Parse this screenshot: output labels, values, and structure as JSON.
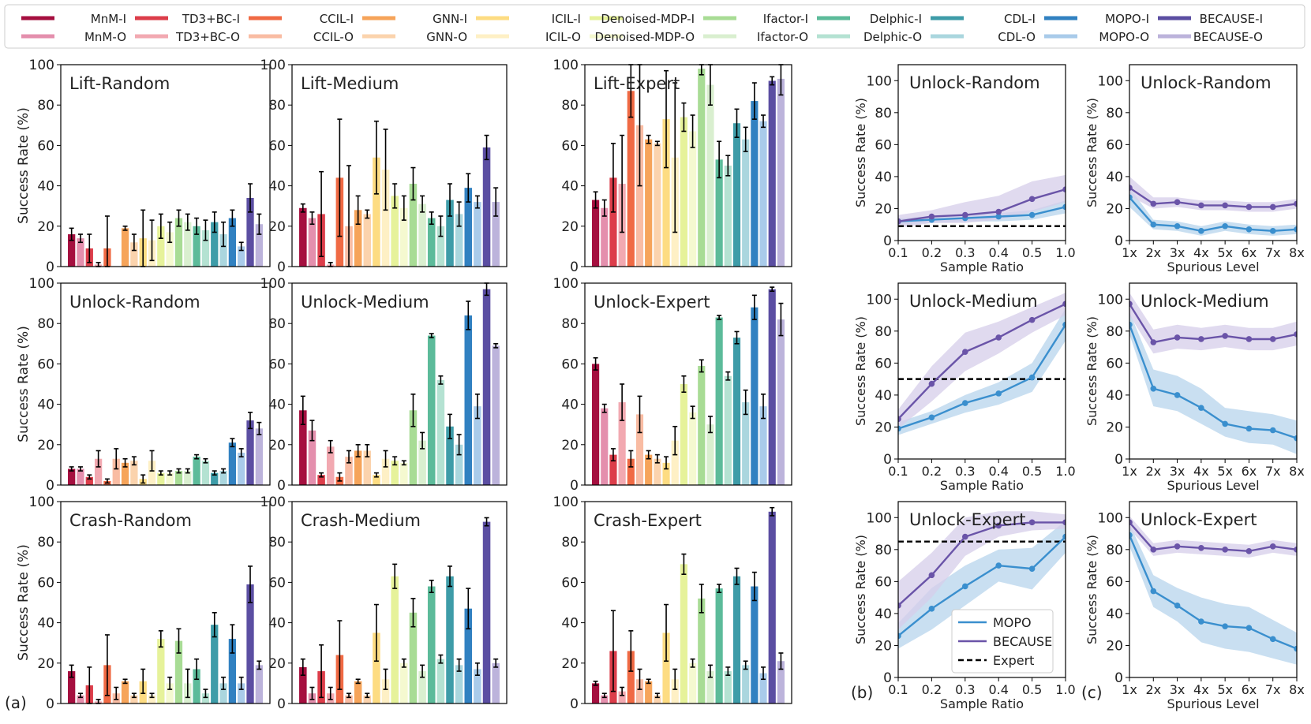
{
  "figure": {
    "legend": [
      {
        "name": "MnM-I",
        "color": "#a50f3f"
      },
      {
        "name": "MnM-O",
        "color": "#e48fad"
      },
      {
        "name": "TD3+BC-I",
        "color": "#dc3d4a"
      },
      {
        "name": "TD3+BC-O",
        "color": "#f2a9b1"
      },
      {
        "name": "CCIL-I",
        "color": "#f06a44"
      },
      {
        "name": "CCIL-O",
        "color": "#f9bca3"
      },
      {
        "name": "GNN-I",
        "color": "#f6a45a"
      },
      {
        "name": "GNN-O",
        "color": "#fbd3ad"
      },
      {
        "name": "ICIL-I",
        "color": "#fddc82"
      },
      {
        "name": "ICIL-O",
        "color": "#fef0c5"
      },
      {
        "name": "Denoised-MDP-I",
        "color": "#e6f29a"
      },
      {
        "name": "Denoised-MDP-O",
        "color": "#f5f9d0"
      },
      {
        "name": "Ifactor-I",
        "color": "#a8dc95"
      },
      {
        "name": "Ifactor-O",
        "color": "#d9efcf"
      },
      {
        "name": "Delphic-I",
        "color": "#5cbb9a"
      },
      {
        "name": "Delphic-O",
        "color": "#b4e2d2"
      },
      {
        "name": "CDL-I",
        "color": "#3e9ca8"
      },
      {
        "name": "CDL-O",
        "color": "#aad6de"
      },
      {
        "name": "MOPO-I",
        "color": "#3181c1"
      },
      {
        "name": "MOPO-O",
        "color": "#a9cbea"
      },
      {
        "name": "BECAUSE-I",
        "color": "#5b4ea2"
      },
      {
        "name": "BECAUSE-O",
        "color": "#bcb3db"
      }
    ],
    "panel_labels": [
      "(a)",
      "(b)",
      "(c)"
    ]
  },
  "chart_data": [
    {
      "type": "bar",
      "title": "Lift-Random",
      "ylabel": "Success Rate (%)",
      "ylim": [
        0,
        100
      ],
      "yticks": [
        0,
        20,
        40,
        60,
        80,
        100
      ],
      "values": [
        16,
        14,
        9,
        1,
        9,
        0,
        19,
        12,
        14,
        13,
        20,
        17,
        24,
        22,
        20,
        18,
        22,
        16,
        24,
        10,
        34,
        21
      ],
      "errors": [
        3,
        2,
        7,
        1,
        16,
        0,
        1,
        4,
        14,
        10,
        6,
        5,
        4,
        4,
        4,
        5,
        5,
        6,
        4,
        2,
        7,
        5
      ]
    },
    {
      "type": "bar",
      "title": "Lift-Medium",
      "ylabel": "",
      "ylim": [
        0,
        100
      ],
      "yticks": [
        0,
        20,
        40,
        60,
        80,
        100
      ],
      "values": [
        29,
        24,
        26,
        1,
        44,
        20,
        28,
        26,
        54,
        48,
        35,
        29,
        41,
        31,
        24,
        20,
        33,
        26,
        39,
        32,
        59,
        32
      ],
      "errors": [
        2,
        3,
        21,
        1,
        29,
        30,
        7,
        2,
        18,
        20,
        6,
        6,
        8,
        4,
        3,
        5,
        8,
        6,
        7,
        3,
        6,
        7
      ]
    },
    {
      "type": "bar",
      "title": "Lift-Expert",
      "ylabel": "",
      "ylim": [
        0,
        100
      ],
      "yticks": [
        0,
        20,
        40,
        60,
        80,
        100
      ],
      "values": [
        33,
        29,
        44,
        41,
        87,
        70,
        63,
        61,
        73,
        54,
        74,
        67,
        98,
        90,
        53,
        50,
        71,
        63,
        82,
        72,
        92,
        93
      ],
      "errors": [
        4,
        4,
        17,
        24,
        13,
        30,
        2,
        1,
        24,
        37,
        7,
        8,
        3,
        10,
        9,
        5,
        7,
        6,
        9,
        3,
        2,
        8
      ]
    },
    {
      "type": "bar",
      "title": "Unlock-Random",
      "ylabel": "Success Rate (%)",
      "ylim": [
        0,
        100
      ],
      "yticks": [
        0,
        20,
        40,
        60,
        80,
        100
      ],
      "values": [
        8,
        8,
        4,
        13,
        2,
        13,
        11,
        12,
        3,
        12,
        6,
        6,
        7,
        7,
        14,
        12,
        6,
        7,
        21,
        16,
        32,
        28
      ],
      "errors": [
        1,
        1,
        1,
        4,
        1,
        5,
        2,
        2,
        2,
        5,
        1,
        1,
        1,
        1,
        1,
        1,
        1,
        1,
        2,
        2,
        4,
        3
      ]
    },
    {
      "type": "bar",
      "title": "Unlock-Medium",
      "ylabel": "",
      "ylim": [
        0,
        100
      ],
      "yticks": [
        0,
        20,
        40,
        60,
        80,
        100
      ],
      "values": [
        37,
        27,
        5,
        19,
        4,
        14,
        17,
        17,
        5,
        13,
        12,
        11,
        37,
        22,
        74,
        52,
        29,
        20,
        84,
        39,
        97,
        69
      ],
      "errors": [
        7,
        5,
        1,
        3,
        2,
        3,
        3,
        3,
        1,
        4,
        2,
        1,
        8,
        4,
        1,
        2,
        6,
        5,
        7,
        6,
        3,
        1
      ]
    },
    {
      "type": "bar",
      "title": "Unlock-Expert",
      "ylabel": "",
      "ylim": [
        0,
        100
      ],
      "yticks": [
        0,
        20,
        40,
        60,
        80,
        100
      ],
      "values": [
        60,
        38,
        15,
        41,
        13,
        35,
        15,
        13,
        11,
        22,
        50,
        36,
        59,
        30,
        83,
        54,
        73,
        41,
        88,
        39,
        97,
        82
      ],
      "errors": [
        3,
        2,
        3,
        9,
        4,
        9,
        2,
        2,
        3,
        7,
        4,
        3,
        3,
        4,
        1,
        2,
        3,
        6,
        6,
        6,
        1,
        8
      ]
    },
    {
      "type": "bar",
      "title": "Crash-Random",
      "ylabel": "Success Rate (%)",
      "ylim": [
        0,
        100
      ],
      "yticks": [
        0,
        20,
        40,
        60,
        80,
        100
      ],
      "values": [
        16,
        4,
        9,
        1,
        19,
        5,
        11,
        4,
        11,
        4,
        32,
        10,
        31,
        10,
        17,
        5,
        39,
        10,
        32,
        10,
        59,
        19
      ],
      "errors": [
        3,
        1,
        9,
        1,
        15,
        3,
        1,
        1,
        6,
        1,
        4,
        3,
        6,
        7,
        5,
        2,
        6,
        3,
        7,
        3,
        9,
        2
      ]
    },
    {
      "type": "bar",
      "title": "Crash-Medium",
      "ylabel": "",
      "ylim": [
        0,
        100
      ],
      "yticks": [
        0,
        20,
        40,
        60,
        80,
        100
      ],
      "values": [
        18,
        5,
        16,
        5,
        24,
        4,
        11,
        4,
        35,
        12,
        63,
        20,
        45,
        16,
        58,
        22,
        63,
        19,
        47,
        17,
        90,
        20
      ],
      "errors": [
        4,
        3,
        13,
        3,
        17,
        1,
        1,
        1,
        14,
        5,
        6,
        2,
        7,
        3,
        3,
        2,
        5,
        3,
        10,
        3,
        2,
        2
      ]
    },
    {
      "type": "bar",
      "title": "Crash-Expert",
      "ylabel": "",
      "ylim": [
        0,
        100
      ],
      "yticks": [
        0,
        20,
        40,
        60,
        80,
        100
      ],
      "values": [
        10,
        4,
        26,
        6,
        26,
        12,
        11,
        4,
        35,
        12,
        69,
        20,
        52,
        16,
        57,
        16,
        63,
        19,
        58,
        15,
        95,
        21
      ],
      "errors": [
        1,
        1,
        20,
        2,
        10,
        5,
        1,
        1,
        14,
        5,
        5,
        2,
        7,
        3,
        2,
        2,
        4,
        2,
        7,
        3,
        2,
        4
      ]
    },
    {
      "type": "line",
      "title": "Unlock-Random",
      "xlabel": "Sample Ratio",
      "ylabel": "Success Rate (%)",
      "ylim": [
        0,
        110
      ],
      "yticks": [
        0,
        20,
        40,
        60,
        80,
        100
      ],
      "xticks": [
        "0.1",
        "0.2",
        "0.3",
        "0.4",
        "0.5",
        "1.0"
      ],
      "expert": 9,
      "series": [
        {
          "name": "MOPO",
          "color": "#3a8fce",
          "fill": "#b7d4ec",
          "values": [
            12,
            13,
            14,
            15,
            16,
            21
          ],
          "lower": [
            10,
            11,
            12,
            12,
            13,
            17
          ],
          "upper": [
            14,
            15,
            16,
            17,
            19,
            25
          ]
        },
        {
          "name": "BECAUSE",
          "color": "#6a54a8",
          "fill": "#d6cde9",
          "values": [
            12,
            15,
            16,
            18,
            26,
            32
          ],
          "lower": [
            8,
            11,
            11,
            13,
            18,
            24
          ],
          "upper": [
            16,
            19,
            24,
            28,
            37,
            41
          ]
        }
      ]
    },
    {
      "type": "line",
      "title": "Unlock-Medium",
      "xlabel": "Sample Ratio",
      "ylabel": "Success Rate (%)",
      "ylim": [
        0,
        110
      ],
      "yticks": [
        0,
        20,
        40,
        60,
        80,
        100
      ],
      "xticks": [
        "0.1",
        "0.2",
        "0.3",
        "0.4",
        "0.5",
        "1.0"
      ],
      "expert": 50,
      "series": [
        {
          "name": "MOPO",
          "color": "#3a8fce",
          "fill": "#b7d4ec",
          "values": [
            19,
            26,
            35,
            41,
            51,
            84
          ],
          "lower": [
            15,
            22,
            29,
            34,
            42,
            74
          ],
          "upper": [
            23,
            30,
            40,
            48,
            60,
            94
          ]
        },
        {
          "name": "BECAUSE",
          "color": "#6a54a8",
          "fill": "#d6cde9",
          "values": [
            25,
            47,
            67,
            76,
            87,
            97
          ],
          "lower": [
            19,
            36,
            55,
            66,
            79,
            90
          ],
          "upper": [
            31,
            58,
            79,
            86,
            95,
            104
          ]
        }
      ]
    },
    {
      "type": "line",
      "title": "Unlock-Expert",
      "xlabel": "Sample Ratio",
      "ylabel": "Success Rate (%)",
      "ylim": [
        0,
        110
      ],
      "yticks": [
        0,
        20,
        40,
        60,
        80,
        100
      ],
      "xticks": [
        "0.1",
        "0.2",
        "0.3",
        "0.4",
        "0.5",
        "1.0"
      ],
      "expert": 85,
      "series": [
        {
          "name": "MOPO",
          "color": "#3a8fce",
          "fill": "#b7d4ec",
          "values": [
            26,
            43,
            57,
            70,
            68,
            88
          ],
          "lower": [
            18,
            30,
            45,
            60,
            55,
            78
          ],
          "upper": [
            34,
            56,
            70,
            80,
            81,
            98
          ]
        },
        {
          "name": "BECAUSE",
          "color": "#6a54a8",
          "fill": "#d6cde9",
          "values": [
            45,
            64,
            88,
            95,
            97,
            97
          ],
          "lower": [
            30,
            50,
            76,
            88,
            92,
            93
          ],
          "upper": [
            60,
            78,
            100,
            104,
            104,
            102
          ]
        }
      ],
      "legend": [
        "MOPO",
        "BECAUSE",
        "Expert"
      ]
    },
    {
      "type": "line",
      "title": "Unlock-Random",
      "xlabel": "Spurious Level",
      "ylabel": "Success Rate (%)",
      "ylim": [
        0,
        110
      ],
      "yticks": [
        0,
        20,
        40,
        60,
        80,
        100
      ],
      "xticks": [
        "1x",
        "2x",
        "3x",
        "4x",
        "5x",
        "6x",
        "7x",
        "8x"
      ],
      "series": [
        {
          "name": "MOPO",
          "color": "#3a8fce",
          "fill": "#b7d4ec",
          "values": [
            27,
            10,
            9,
            6,
            9,
            7,
            6,
            7
          ],
          "lower": [
            21,
            7,
            6,
            3,
            6,
            4,
            3,
            4
          ],
          "upper": [
            33,
            13,
            12,
            9,
            12,
            10,
            9,
            10
          ]
        },
        {
          "name": "BECAUSE",
          "color": "#6a54a8",
          "fill": "#d6cde9",
          "values": [
            33,
            23,
            24,
            22,
            22,
            21,
            21,
            23
          ],
          "lower": [
            28,
            20,
            21,
            19,
            19,
            18,
            18,
            20
          ],
          "upper": [
            40,
            27,
            27,
            25,
            25,
            24,
            24,
            26
          ]
        }
      ]
    },
    {
      "type": "line",
      "title": "Unlock-Medium",
      "xlabel": "Spurious Level",
      "ylabel": "Success Rate (%)",
      "ylim": [
        0,
        110
      ],
      "yticks": [
        0,
        20,
        40,
        60,
        80,
        100
      ],
      "xticks": [
        "1x",
        "2x",
        "3x",
        "4x",
        "5x",
        "6x",
        "7x",
        "8x"
      ],
      "series": [
        {
          "name": "MOPO",
          "color": "#3a8fce",
          "fill": "#b7d4ec",
          "values": [
            84,
            44,
            40,
            32,
            22,
            19,
            18,
            13
          ],
          "lower": [
            78,
            33,
            30,
            22,
            14,
            10,
            9,
            3
          ],
          "upper": [
            92,
            56,
            52,
            44,
            32,
            30,
            28,
            24
          ]
        },
        {
          "name": "BECAUSE",
          "color": "#6a54a8",
          "fill": "#d6cde9",
          "values": [
            97,
            73,
            76,
            75,
            77,
            75,
            75,
            78
          ],
          "lower": [
            90,
            66,
            69,
            68,
            70,
            68,
            68,
            71
          ],
          "upper": [
            104,
            81,
            84,
            82,
            84,
            82,
            82,
            86
          ]
        }
      ]
    },
    {
      "type": "line",
      "title": "Unlock-Expert",
      "xlabel": "Spurious Level",
      "ylabel": "Success Rate (%)",
      "ylim": [
        0,
        110
      ],
      "yticks": [
        0,
        20,
        40,
        60,
        80,
        100
      ],
      "xticks": [
        "1x",
        "2x",
        "3x",
        "4x",
        "5x",
        "6x",
        "7x",
        "8x"
      ],
      "series": [
        {
          "name": "MOPO",
          "color": "#3a8fce",
          "fill": "#b7d4ec",
          "values": [
            89,
            54,
            45,
            35,
            32,
            31,
            24,
            18
          ],
          "lower": [
            82,
            44,
            35,
            22,
            18,
            16,
            12,
            8
          ],
          "upper": [
            96,
            64,
            56,
            50,
            46,
            44,
            36,
            28
          ]
        },
        {
          "name": "BECAUSE",
          "color": "#6a54a8",
          "fill": "#d6cde9",
          "values": [
            97,
            80,
            82,
            81,
            80,
            79,
            82,
            80
          ],
          "lower": [
            93,
            76,
            78,
            77,
            76,
            75,
            78,
            76
          ],
          "upper": [
            101,
            84,
            86,
            85,
            84,
            83,
            86,
            84
          ]
        }
      ]
    }
  ]
}
